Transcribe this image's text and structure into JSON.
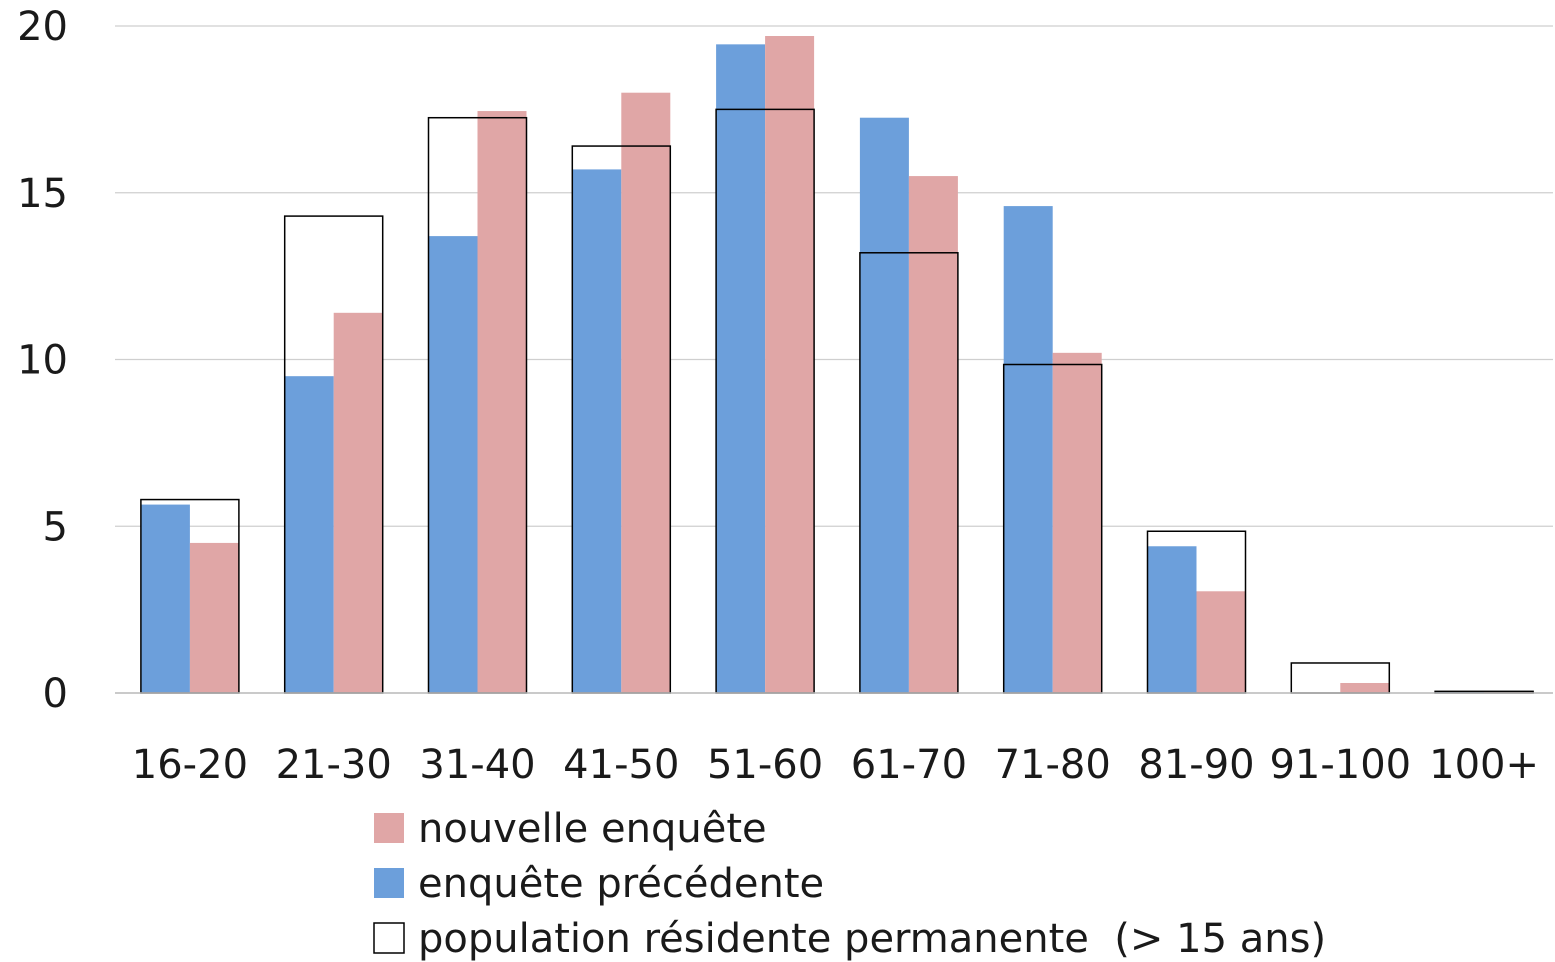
{
  "chart_data": {
    "type": "bar",
    "categories": [
      "16-20",
      "21-30",
      "31-40",
      "41-50",
      "51-60",
      "61-70",
      "71-80",
      "81-90",
      "91-100",
      "100+"
    ],
    "series": [
      {
        "name": "enquête précédente",
        "color": "#6c9fdb",
        "values": [
          5.65,
          9.5,
          13.7,
          15.7,
          19.45,
          17.25,
          14.6,
          4.4,
          0.0,
          0.05
        ]
      },
      {
        "name": "nouvelle enquête",
        "color": "#e0a6a6",
        "values": [
          4.5,
          11.4,
          17.45,
          18.0,
          19.7,
          15.5,
          10.2,
          3.05,
          0.3,
          0.05
        ]
      },
      {
        "name": "population résidente permanente  (> 15 ans)",
        "color": "#ffffff",
        "outline": "#000000",
        "style": "outline-box",
        "values": [
          5.8,
          14.3,
          17.25,
          16.4,
          17.5,
          13.2,
          9.85,
          4.85,
          0.9,
          0.05
        ]
      }
    ],
    "ylim": [
      0,
      20
    ],
    "yticks": [
      "0",
      "5",
      "10",
      "15",
      "20"
    ],
    "grid": true,
    "legend_position": "bottom",
    "legend_order": [
      "nouvelle enquête",
      "enquête précédente",
      "population résidente permanente  (> 15 ans)"
    ],
    "title": "",
    "xlabel": "",
    "ylabel": ""
  }
}
